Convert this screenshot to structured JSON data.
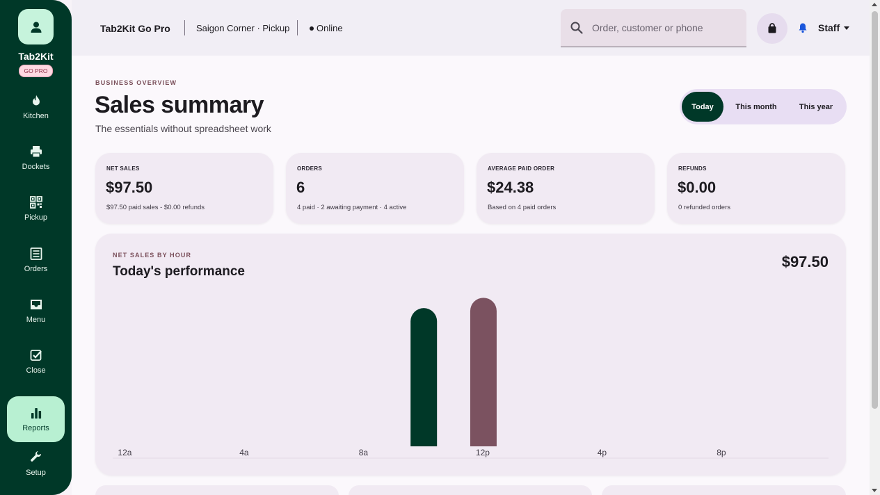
{
  "brand": {
    "name": "Tab2Kit",
    "badge": "GO PRO",
    "icon": "person-icon"
  },
  "nav": [
    {
      "label": "Kitchen",
      "icon": "flame-icon",
      "active": false
    },
    {
      "label": "Dockets",
      "icon": "printer-icon",
      "active": false
    },
    {
      "label": "Pickup",
      "icon": "qr-code-icon",
      "active": false
    },
    {
      "label": "Orders",
      "icon": "list-icon",
      "active": false
    },
    {
      "label": "Menu",
      "icon": "inbox-icon",
      "active": false
    },
    {
      "label": "Close",
      "icon": "check-square-icon",
      "active": false
    },
    {
      "label": "Reports",
      "icon": "bar-chart-icon",
      "active": true
    },
    {
      "label": "Setup",
      "icon": "wrench-icon",
      "active": false
    }
  ],
  "topbar": {
    "app_title": "Tab2Kit Go Pro",
    "location": "Saigon Corner · Pickup",
    "status": "Online",
    "search_placeholder": "Order, customer or phone",
    "user": "Staff"
  },
  "page": {
    "eyebrow": "BUSINESS OVERVIEW",
    "title": "Sales summary",
    "subtitle": "The essentials without spreadsheet work",
    "ranges": [
      "Today",
      "This month",
      "This year"
    ],
    "active_range": "Today"
  },
  "kpis": [
    {
      "label": "NET SALES",
      "value": "$97.50",
      "note": "$97.50 paid sales - $0.00 refunds"
    },
    {
      "label": "ORDERS",
      "value": "6",
      "note": "4 paid · 2 awaiting payment · 4 active"
    },
    {
      "label": "AVERAGE PAID ORDER",
      "value": "$24.38",
      "note": "Based on 4 paid orders"
    },
    {
      "label": "REFUNDS",
      "value": "$0.00",
      "note": "0 refunded orders"
    }
  ],
  "chart": {
    "eyebrow": "NET SALES BY HOUR",
    "title": "Today's performance",
    "total": "$97.50"
  },
  "chart_data": {
    "type": "bar",
    "tick_labels": [
      "12a",
      "4a",
      "8a",
      "12p",
      "4p",
      "8p"
    ],
    "bars": [
      {
        "hour": 10,
        "value": 47,
        "color": "#003828"
      },
      {
        "hour": 12,
        "value": 50.5,
        "color": "#7b5260"
      }
    ],
    "hours": 24,
    "ylim": [
      0,
      52
    ]
  },
  "colors": {
    "primary": "#003828",
    "accent": "#7b5260",
    "surface": "#f1eaf3"
  }
}
